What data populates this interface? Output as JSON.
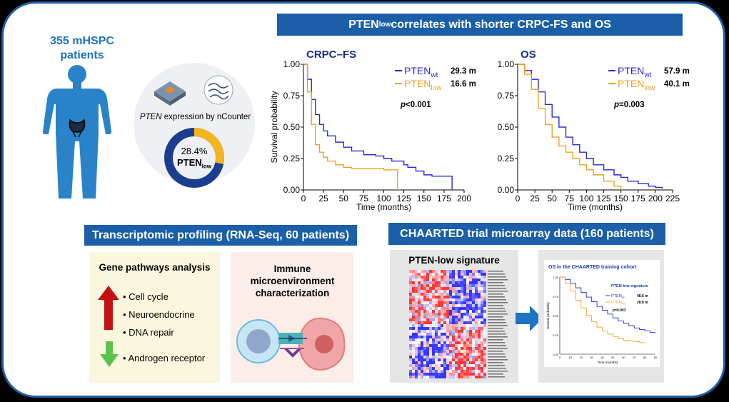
{
  "patients": {
    "line1": "355 mHSPC",
    "line2": "patients"
  },
  "ncounter": {
    "gene": "PTEN",
    "caption": " expression by nCounter"
  },
  "donut": {
    "percent_label": "28.4%",
    "label_main": "PTEN",
    "label_sub": "low",
    "fraction": 0.284,
    "color_low": "#f2b51f",
    "color_rest": "#1a3d8f"
  },
  "top_banner": {
    "pre": "PTEN",
    "sub": "low",
    "post": " correlates with shorter CRPC-FS and OS"
  },
  "km_left": {
    "title": "CRPC–FS",
    "ylabel": "Survival probability",
    "xlabel": "Time (months)",
    "xticks": [
      "0",
      "25",
      "50",
      "75",
      "100",
      "125",
      "150",
      "175",
      "200"
    ],
    "yticks": [
      "0.00",
      "0.25",
      "0.50",
      "0.75",
      "1.00"
    ],
    "legend_wt_main": "PTEN",
    "legend_wt_sub": "wt",
    "legend_wt_value": "29.3 m",
    "legend_low_main": "PTEN",
    "legend_low_sub": "low",
    "legend_low_value": "16.6 m",
    "p_label": "p",
    "p_value": "<0.001"
  },
  "km_right": {
    "title": "OS",
    "xlabel": "Time (months)",
    "xticks": [
      "0",
      "25",
      "50",
      "75",
      "100",
      "125",
      "150",
      "175",
      "200",
      "225"
    ],
    "yticks": [
      "0.00",
      "0.25",
      "0.50",
      "0.75",
      "1.00"
    ],
    "legend_wt_main": "PTEN",
    "legend_wt_sub": "wt",
    "legend_wt_value": "57.9 m",
    "legend_low_main": "PTEN",
    "legend_low_sub": "low",
    "legend_low_value": "40.1 m",
    "p_label": "p",
    "p_value": "=0.003"
  },
  "transcriptomic": {
    "banner": "Transcriptomic profiling (RNA-Seq, 60 patients)",
    "gene_title": "Gene pathways analysis",
    "up_items": [
      "Cell cycle",
      "Neuroendocrine",
      "DNA repair"
    ],
    "down_items": [
      "Androgen receptor"
    ],
    "immune_title_1": "Immune",
    "immune_title_2": "microenvironment",
    "immune_title_3": "characterization"
  },
  "chaarted": {
    "banner": "CHAARTED trial microarray data (160 patients)",
    "heatmap_title": "PTEN-low signature",
    "km_title": "OS in the CHAARTED training cohort",
    "km_sig_label": "PTEN-low signature",
    "legend_wt_main": "PTEN",
    "legend_wt_sub": "wt",
    "legend_wt_value": "48.6 m",
    "legend_low_main": "PTEN",
    "legend_low_sub": "low",
    "legend_low_value": "28.8 m",
    "p_label": "p",
    "p_value": "=0.003",
    "ylabel": "Survival probability",
    "xlabel": "Time (months)",
    "yticks": [
      "0.00",
      "0.25",
      "0.50",
      "0.75",
      "1.00"
    ],
    "xticks": [
      "0",
      "10",
      "20",
      "30",
      "40",
      "50",
      "60",
      "70",
      "80",
      "90"
    ]
  },
  "colors": {
    "wt": "#2a2ad0",
    "low": "#f0a020",
    "banner": "#1a5fa8",
    "body": "#2a83c8",
    "arrow_up": "#c41212",
    "arrow_down": "#5cc24e"
  },
  "chart_data": [
    {
      "type": "line",
      "title": "CRPC–FS",
      "xlabel": "Time (months)",
      "ylabel": "Survival probability",
      "xlim": [
        0,
        200
      ],
      "ylim": [
        0,
        1
      ],
      "series": [
        {
          "name": "PTENwt",
          "x": [
            0,
            5,
            10,
            15,
            20,
            25,
            30,
            40,
            50,
            60,
            75,
            90,
            100,
            110,
            125,
            130,
            140,
            150,
            160,
            175,
            185
          ],
          "y": [
            1.0,
            0.88,
            0.72,
            0.6,
            0.52,
            0.47,
            0.43,
            0.38,
            0.34,
            0.31,
            0.28,
            0.27,
            0.25,
            0.23,
            0.2,
            0.18,
            0.15,
            0.12,
            0.11,
            0.11,
            0.0
          ]
        },
        {
          "name": "PTENlow",
          "x": [
            0,
            5,
            10,
            15,
            20,
            25,
            30,
            40,
            50,
            60,
            75,
            100,
            115,
            117
          ],
          "y": [
            1.0,
            0.78,
            0.52,
            0.36,
            0.3,
            0.26,
            0.23,
            0.2,
            0.18,
            0.17,
            0.17,
            0.16,
            0.16,
            0.0
          ]
        }
      ]
    },
    {
      "type": "line",
      "title": "OS",
      "xlabel": "Time (months)",
      "ylabel": "Survival probability",
      "xlim": [
        0,
        225
      ],
      "ylim": [
        0,
        1
      ],
      "series": [
        {
          "name": "PTENwt",
          "x": [
            0,
            10,
            20,
            30,
            40,
            50,
            60,
            70,
            80,
            90,
            100,
            110,
            125,
            140,
            150,
            160,
            175,
            190,
            200,
            210
          ],
          "y": [
            1.0,
            0.95,
            0.88,
            0.78,
            0.68,
            0.58,
            0.5,
            0.42,
            0.36,
            0.3,
            0.25,
            0.2,
            0.16,
            0.12,
            0.1,
            0.07,
            0.05,
            0.03,
            0.02,
            0.01
          ]
        },
        {
          "name": "PTENlow",
          "x": [
            0,
            10,
            20,
            30,
            40,
            50,
            60,
            70,
            80,
            90,
            100,
            110,
            125,
            140,
            150
          ],
          "y": [
            1.0,
            0.92,
            0.8,
            0.65,
            0.52,
            0.42,
            0.35,
            0.3,
            0.25,
            0.2,
            0.16,
            0.12,
            0.07,
            0.03,
            0.0
          ]
        }
      ]
    },
    {
      "type": "line",
      "title": "OS in the CHAARTED training cohort",
      "xlabel": "Time (months)",
      "ylabel": "Survival probability",
      "xlim": [
        0,
        90
      ],
      "ylim": [
        0,
        1
      ],
      "series": [
        {
          "name": "PTENwt",
          "x": [
            0,
            5,
            10,
            15,
            20,
            25,
            30,
            35,
            40,
            45,
            50,
            55,
            60,
            65,
            70,
            75,
            80,
            85,
            90
          ],
          "y": [
            1.0,
            0.97,
            0.92,
            0.86,
            0.8,
            0.74,
            0.68,
            0.62,
            0.57,
            0.52,
            0.47,
            0.43,
            0.4,
            0.37,
            0.34,
            0.32,
            0.3,
            0.28,
            0.28
          ]
        },
        {
          "name": "PTENlow",
          "x": [
            0,
            5,
            10,
            15,
            20,
            25,
            30,
            35,
            40,
            45,
            50,
            55,
            60,
            65,
            70,
            75,
            80
          ],
          "y": [
            1.0,
            0.92,
            0.82,
            0.7,
            0.6,
            0.5,
            0.42,
            0.35,
            0.3,
            0.26,
            0.23,
            0.2,
            0.18,
            0.17,
            0.16,
            0.15,
            0.15
          ]
        }
      ]
    }
  ]
}
